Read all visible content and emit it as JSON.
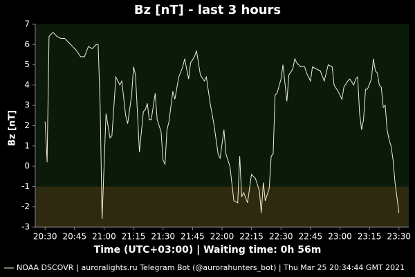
{
  "chart_data": {
    "type": "line",
    "title": "Bz [nT] - last 3 hours",
    "x_label": "Time (UTC+03:00) | Waiting time: 0h 56m",
    "y_label": "Bz [nT]",
    "footer": "| auroralights.ru Telegram Bot (@aurorahunters_bot) | Thu Mar 25 20:34:44 GMT 2021",
    "x": [
      "20:30",
      "20:31",
      "20:32",
      "20:34",
      "20:36",
      "20:38",
      "20:40",
      "20:42",
      "20:44",
      "20:46",
      "20:48",
      "20:50",
      "20:52",
      "20:54",
      "20:56",
      "20:57",
      "20:58",
      "20:59",
      "21:01",
      "21:03",
      "21:04",
      "21:06",
      "21:08",
      "21:09",
      "21:11",
      "21:12",
      "21:14",
      "21:15",
      "21:16",
      "21:18",
      "21:20",
      "21:21",
      "21:22",
      "21:23",
      "21:24",
      "21:26",
      "21:27",
      "21:29",
      "21:30",
      "21:31",
      "21:32",
      "21:33",
      "21:35",
      "21:36",
      "21:38",
      "21:40",
      "21:41",
      "21:43",
      "21:44",
      "21:46",
      "21:47",
      "21:49",
      "21:51",
      "21:52",
      "21:54",
      "21:56",
      "21:58",
      "21:59",
      "22:01",
      "22:02",
      "22:04",
      "22:06",
      "22:08",
      "22:09",
      "22:10",
      "22:11",
      "22:13",
      "22:15",
      "22:17",
      "22:19",
      "22:20",
      "22:21",
      "22:22",
      "22:24",
      "22:25",
      "22:26",
      "22:27",
      "22:28",
      "22:30",
      "22:31",
      "22:33",
      "22:34",
      "22:36",
      "22:37",
      "22:38",
      "22:40",
      "22:42",
      "22:43",
      "22:45",
      "22:46",
      "22:48",
      "22:50",
      "22:52",
      "22:54",
      "22:56",
      "22:57",
      "22:59",
      "23:01",
      "23:02",
      "23:04",
      "23:05",
      "23:07",
      "23:08",
      "23:09",
      "23:10",
      "23:11",
      "23:12",
      "23:13",
      "23:14",
      "23:16",
      "23:17",
      "23:18",
      "23:19",
      "23:20",
      "23:21",
      "23:22",
      "23:23",
      "23:24",
      "23:25",
      "23:26",
      "23:27",
      "23:28",
      "23:30"
    ],
    "series": [
      {
        "name": "NOAA DSCOVR",
        "color": "#f0f0d0",
        "values": [
          2.2,
          0.2,
          6.4,
          6.6,
          6.4,
          6.3,
          6.3,
          6.1,
          5.9,
          5.7,
          5.4,
          5.4,
          5.9,
          5.8,
          6.0,
          6.0,
          3.0,
          -2.6,
          2.6,
          1.4,
          1.5,
          4.4,
          4.0,
          4.2,
          2.5,
          2.1,
          3.5,
          4.9,
          4.5,
          0.7,
          2.7,
          2.8,
          3.1,
          2.3,
          2.3,
          3.6,
          2.3,
          1.7,
          0.3,
          0.1,
          1.8,
          2.2,
          3.7,
          3.3,
          4.4,
          4.9,
          5.3,
          4.3,
          5.1,
          5.4,
          5.7,
          4.5,
          4.2,
          4.4,
          3.1,
          2.0,
          0.6,
          0.4,
          1.8,
          0.6,
          0.0,
          -1.7,
          -1.8,
          0.5,
          -1.5,
          -1.3,
          -1.8,
          -0.4,
          -0.6,
          -1.2,
          -2.3,
          -0.8,
          -1.7,
          -1.1,
          0.5,
          0.6,
          3.5,
          3.6,
          4.3,
          5.0,
          3.2,
          4.5,
          4.8,
          5.3,
          5.1,
          4.9,
          4.9,
          4.6,
          4.2,
          4.9,
          4.8,
          4.7,
          4.2,
          5.0,
          4.9,
          4.0,
          3.7,
          3.3,
          3.9,
          4.2,
          4.3,
          4.0,
          4.3,
          4.4,
          2.6,
          1.8,
          2.3,
          3.8,
          3.8,
          4.3,
          5.3,
          4.7,
          4.6,
          4.0,
          3.9,
          2.9,
          3.0,
          1.8,
          1.3,
          1.0,
          0.3,
          -0.8,
          -2.3
        ]
      }
    ],
    "xlim": [
      "20:25",
      "23:35"
    ],
    "xticks": [
      "20:30",
      "20:45",
      "21:00",
      "21:15",
      "21:30",
      "21:45",
      "22:00",
      "22:15",
      "22:30",
      "22:45",
      "23:00",
      "23:15",
      "23:30"
    ],
    "ylim": [
      -3,
      7
    ],
    "yticks": [
      -3,
      -2,
      -1,
      0,
      1,
      2,
      3,
      4,
      5,
      6,
      7
    ],
    "shade_below": -1,
    "shade_color": "#2e2a10",
    "background": "#0b1a0b"
  }
}
